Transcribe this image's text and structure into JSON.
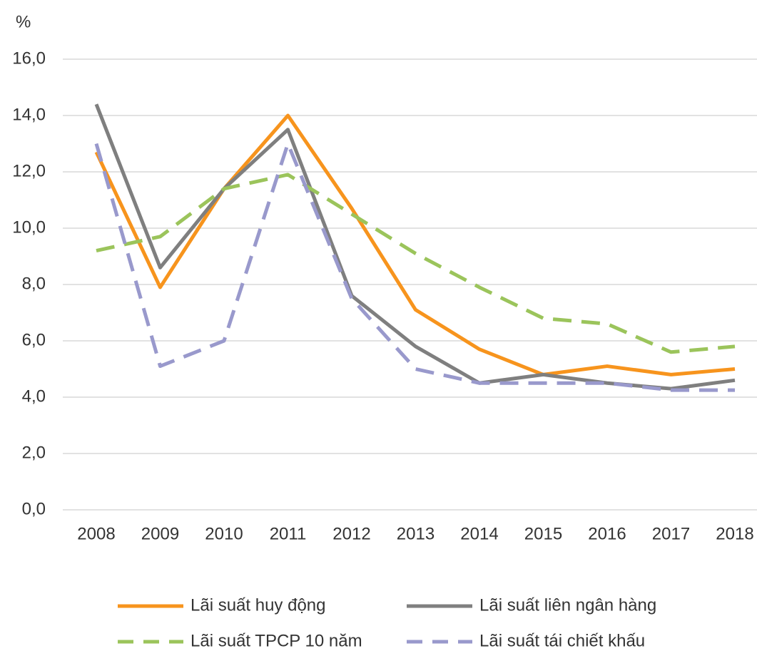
{
  "chart_data": {
    "type": "line",
    "y_label": "%",
    "categories": [
      "2008",
      "2009",
      "2010",
      "2011",
      "2012",
      "2013",
      "2014",
      "2015",
      "2016",
      "2017",
      "2018"
    ],
    "ylim": [
      0,
      16
    ],
    "yticks": [
      {
        "value": 0,
        "label": "0,0"
      },
      {
        "value": 2,
        "label": "2,0"
      },
      {
        "value": 4,
        "label": "4,0"
      },
      {
        "value": 6,
        "label": "6,0"
      },
      {
        "value": 8,
        "label": "8,0"
      },
      {
        "value": 10,
        "label": "10,0"
      },
      {
        "value": 12,
        "label": "12,0"
      },
      {
        "value": 14,
        "label": "14,0"
      },
      {
        "value": 16,
        "label": "16,0"
      }
    ],
    "grid": true,
    "legend": "bottom",
    "series": [
      {
        "name": "Lãi suất huy động",
        "color": "#f7941d",
        "dash": false,
        "values": [
          12.7,
          7.9,
          11.4,
          14.0,
          10.7,
          7.1,
          5.7,
          4.8,
          5.1,
          4.8,
          5.0
        ]
      },
      {
        "name": "Lãi suất liên ngân hàng",
        "color": "#7f7f7f",
        "dash": false,
        "values": [
          14.4,
          8.6,
          11.4,
          13.5,
          7.6,
          5.8,
          4.5,
          4.8,
          4.5,
          4.3,
          4.6
        ]
      },
      {
        "name": "Lãi suất TPCP  10 năm",
        "color": "#9bc45b",
        "dash": true,
        "values": [
          9.2,
          9.7,
          11.4,
          11.9,
          10.5,
          9.1,
          7.9,
          6.8,
          6.6,
          5.6,
          5.8
        ]
      },
      {
        "name": "Lãi suất tái chiết khấu",
        "color": "#9999cc",
        "dash": true,
        "values": [
          13.0,
          5.1,
          6.0,
          13.0,
          7.5,
          5.0,
          4.5,
          4.5,
          4.5,
          4.25,
          4.25
        ]
      }
    ]
  }
}
